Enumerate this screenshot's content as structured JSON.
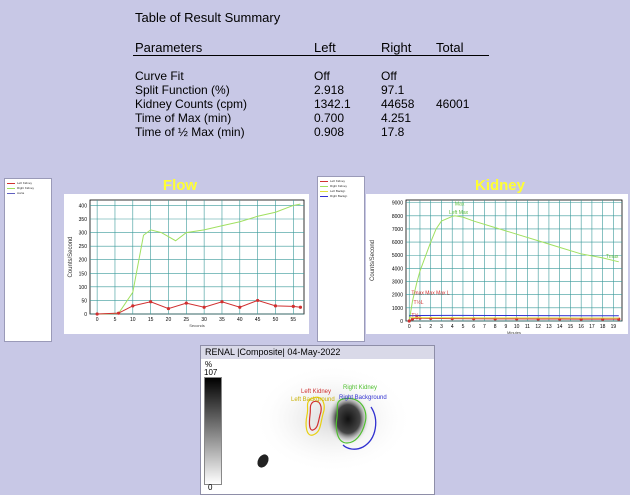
{
  "summary": {
    "title": "Table of Result Summary",
    "headers": {
      "parameters": "Parameters",
      "left": "Left",
      "right": "Right",
      "total": "Total"
    },
    "rows": [
      {
        "label": "Curve Fit",
        "left": "Off",
        "right": "Off",
        "total": ""
      },
      {
        "label": "Split Function (%)",
        "left": "2.918",
        "right": "97.1",
        "total": ""
      },
      {
        "label": "Kidney Counts (cpm)",
        "left": "1342.1",
        "right": "44658",
        "total": "46001"
      },
      {
        "label": "Time of Max (min)",
        "left": "0.700",
        "right": "4.251",
        "total": ""
      },
      {
        "label": "Time of ½ Max (min)",
        "left": "0.908",
        "right": "17.8",
        "total": ""
      }
    ]
  },
  "flow_legend": {
    "items": [
      "Left Kidney",
      "Right Kidney",
      "Aorta"
    ],
    "colors": [
      "#d03030",
      "#a0e060",
      "#6060c0"
    ]
  },
  "kidney_legend": {
    "items": [
      "Left Kidney",
      "Right Kidney",
      "Left Backgr.",
      "Right Backgr."
    ],
    "colors": [
      "#d03030",
      "#a0e060",
      "#e0e040",
      "#3030d0"
    ]
  },
  "chart_data": [
    {
      "type": "line",
      "title": "Flow",
      "xlabel": "Seconds",
      "ylabel": "Counts/Second",
      "ylim": [
        0,
        420
      ],
      "xlim": [
        -2,
        58
      ],
      "xticks": [
        0,
        5,
        10,
        15,
        20,
        25,
        30,
        35,
        40,
        45,
        50,
        55
      ],
      "yticks": [
        0,
        50,
        100,
        150,
        200,
        250,
        300,
        350,
        400
      ],
      "grid": true,
      "series": [
        {
          "color": "#a0e060",
          "x": [
            0,
            6,
            10,
            13,
            15,
            18,
            22,
            25,
            30,
            35,
            40,
            45,
            50,
            55,
            57
          ],
          "y": [
            0,
            2,
            80,
            290,
            310,
            300,
            270,
            300,
            310,
            325,
            340,
            360,
            375,
            400,
            405
          ]
        },
        {
          "color": "#d03030",
          "x": [
            0,
            6,
            10,
            15,
            20,
            25,
            30,
            35,
            40,
            45,
            50,
            55,
            57
          ],
          "y": [
            0,
            3,
            30,
            45,
            20,
            40,
            25,
            45,
            25,
            50,
            30,
            28,
            25
          ],
          "markers": true
        }
      ]
    },
    {
      "type": "line",
      "title": "Kidney",
      "xlabel": "Minutes",
      "ylabel": "Counts/Second",
      "ylim": [
        0,
        9200
      ],
      "xlim": [
        -0.3,
        19.8
      ],
      "xticks": [
        0,
        1,
        2,
        3,
        4,
        5,
        6,
        7,
        8,
        9,
        10,
        11,
        12,
        13,
        14,
        15,
        16,
        17,
        18,
        19
      ],
      "yticks": [
        0,
        1000,
        2000,
        3000,
        4000,
        5000,
        6000,
        7000,
        8000,
        9000
      ],
      "grid": true,
      "annotations": [
        {
          "text": "Max",
          "x": 4.25,
          "y": 8800,
          "color": "#60c040"
        },
        {
          "text": "Left Max",
          "x": 3.7,
          "y": 8150,
          "color": "#60c040"
        },
        {
          "text": "Tmax",
          "x": 18.3,
          "y": 4800,
          "color": "#60c040"
        },
        {
          "text": "Tmax Max Max L",
          "x": 0.2,
          "y": 2000,
          "color": "#d03030"
        },
        {
          "text": "T½L",
          "x": 0.4,
          "y": 1300,
          "color": "#d03030"
        },
        {
          "text": "T½",
          "x": 0.2,
          "y": 300,
          "color": "#d03030"
        }
      ],
      "series": [
        {
          "color": "#a0e060",
          "x": [
            0,
            0.3,
            0.7,
            1.0,
            1.5,
            2,
            2.5,
            3,
            4,
            4.25,
            5,
            6,
            8,
            10,
            12,
            14,
            16,
            17,
            18,
            19.5
          ],
          "y": [
            0,
            1500,
            2900,
            3800,
            4900,
            6000,
            7000,
            7600,
            7950,
            8000,
            7900,
            7600,
            7100,
            6600,
            6100,
            5600,
            5100,
            4950,
            4800,
            4500
          ]
        },
        {
          "color": "#d03030",
          "x": [
            0,
            0.3,
            0.7,
            1,
            2,
            4,
            6,
            8,
            10,
            12,
            14,
            16,
            18,
            19.5
          ],
          "y": [
            0,
            150,
            250,
            220,
            200,
            180,
            170,
            160,
            160,
            150,
            150,
            140,
            140,
            140
          ],
          "markers": true
        },
        {
          "color": "#3030d0",
          "x": [
            0,
            1,
            4,
            8,
            12,
            16,
            19.5
          ],
          "y": [
            400,
            420,
            430,
            420,
            410,
            400,
            400
          ]
        },
        {
          "color": "#e0e040",
          "x": [
            0,
            1,
            4,
            8,
            12,
            16,
            19.5
          ],
          "y": [
            250,
            260,
            250,
            240,
            240,
            230,
            230
          ]
        }
      ]
    }
  ],
  "image_panel": {
    "title": "RENAL |Composite| 04-May-2022",
    "scale_unit": "%",
    "scale_max": "107",
    "scale_min": "0",
    "roi_labels": {
      "left_kidney": "Left Kidney",
      "left_background": "Left Background",
      "right_kidney": "Right Kidney",
      "right_background": "Right Background"
    }
  }
}
